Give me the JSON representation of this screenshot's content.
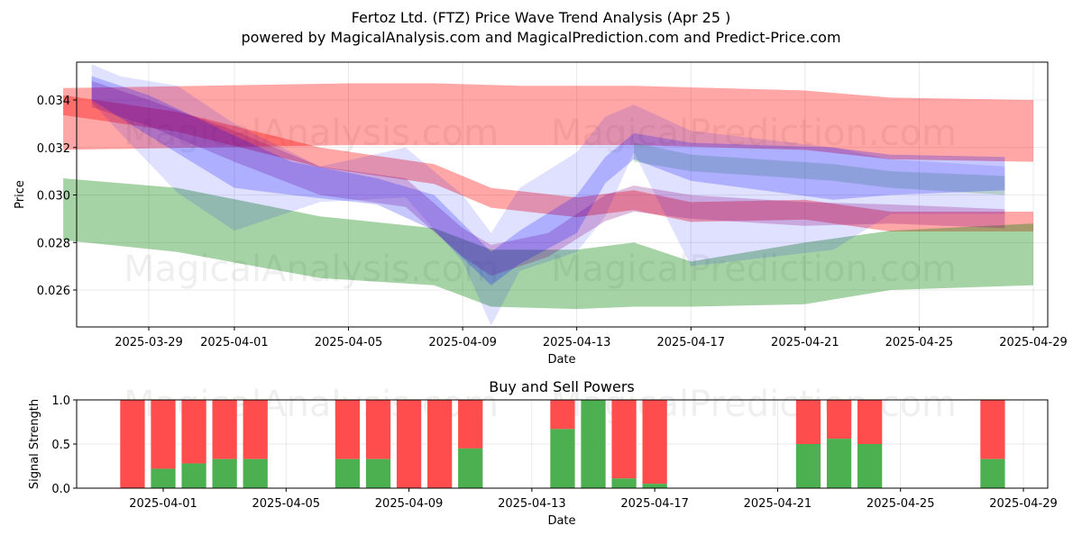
{
  "title": "Fertoz Ltd. (FTZ) Price Wave Trend Analysis (Apr 25 )",
  "subtitle": "powered by MagicalAnalysis.com and MagicalPrediction.com and Predict-Price.com",
  "watermarks": [
    "MagicalAnalysis.com",
    "MagicalPrediction.com"
  ],
  "colors": {
    "red": "#ff0000",
    "green": "#008000",
    "blue": "#0000ff",
    "purple": "#800080",
    "buy": "#4caf50",
    "sell": "#ff4c4c"
  },
  "chart_data": [
    {
      "type": "area",
      "title": "",
      "xlabel": "Date",
      "ylabel": "Price",
      "xlim": [
        "2025-03-25",
        "2025-04-29"
      ],
      "ylim": [
        0.0244,
        0.0357
      ],
      "grid": true,
      "x_ticks": [
        "2025-03-29",
        "2025-04-01",
        "2025-04-05",
        "2025-04-09",
        "2025-04-13",
        "2025-04-17",
        "2025-04-21",
        "2025-04-25",
        "2025-04-29"
      ],
      "y_ticks": [
        "0.026",
        "0.028",
        "0.030",
        "0.032",
        "0.034"
      ],
      "bands": [
        {
          "color": "red",
          "opacity": 0.35,
          "x": [
            "2025-03-26",
            "2025-04-05",
            "2025-04-08",
            "2025-04-11",
            "2025-04-15",
            "2025-04-21",
            "2025-04-24",
            "2025-04-29"
          ],
          "upper": [
            0.0345,
            0.0347,
            0.0347,
            0.0346,
            0.0346,
            0.0344,
            0.0341,
            0.034
          ],
          "lower": [
            0.0319,
            0.0321,
            0.0321,
            0.0321,
            0.0321,
            0.0319,
            0.0315,
            0.0314
          ]
        },
        {
          "color": "red",
          "opacity": 0.35,
          "x": [
            "2025-03-26",
            "2025-03-30",
            "2025-04-04",
            "2025-04-08",
            "2025-04-10",
            "2025-04-13",
            "2025-04-15",
            "2025-04-17",
            "2025-04-21",
            "2025-04-24",
            "2025-04-29"
          ],
          "upper": [
            0.0342,
            0.0335,
            0.032,
            0.0313,
            0.0303,
            0.0299,
            0.0302,
            0.0297,
            0.0298,
            0.0293,
            0.0293
          ]
        },
        {
          "color": "green",
          "opacity": 0.35,
          "x": [
            "2025-03-26",
            "2025-03-30",
            "2025-04-04",
            "2025-04-08",
            "2025-04-10",
            "2025-04-13",
            "2025-04-15",
            "2025-04-17",
            "2025-04-21",
            "2025-04-24",
            "2025-04-29"
          ],
          "upper": [
            0.0307,
            0.0303,
            0.0291,
            0.0286,
            0.0277,
            0.0277,
            0.028,
            0.0272,
            0.028,
            0.0285,
            0.0288
          ],
          "lower": [
            0.0281,
            0.0276,
            0.0265,
            0.0262,
            0.0253,
            0.0252,
            0.0253,
            0.0253,
            0.0254,
            0.026,
            0.0262
          ]
        },
        {
          "color": "blue",
          "opacity": 0.12,
          "x": [
            "2025-03-27",
            "2025-03-28",
            "2025-03-30",
            "2025-04-01",
            "2025-04-04",
            "2025-04-07",
            "2025-04-09",
            "2025-04-10",
            "2025-04-11",
            "2025-04-13",
            "2025-04-14",
            "2025-04-15",
            "2025-04-17",
            "2025-04-22",
            "2025-04-24",
            "2025-04-28"
          ],
          "upper": [
            0.0355,
            0.035,
            0.0346,
            0.033,
            0.0312,
            0.032,
            0.03,
            0.0284,
            0.0303,
            0.0318,
            0.0333,
            0.0338,
            0.0327,
            0.032,
            0.0315,
            0.0312
          ],
          "lower": [
            0.0339,
            0.0326,
            0.0301,
            0.0285,
            0.0297,
            0.0299,
            0.0272,
            0.0245,
            0.0268,
            0.0276,
            0.0291,
            0.0318,
            0.027,
            0.0277,
            0.0292,
            0.0292
          ]
        },
        {
          "color": "green",
          "opacity": 0.18,
          "x": [
            "2025-04-15",
            "2025-04-17",
            "2025-04-22",
            "2025-04-24",
            "2025-04-28"
          ],
          "upper": [
            0.0322,
            0.0317,
            0.0313,
            0.031,
            0.0308
          ],
          "lower": [
            0.0314,
            0.031,
            0.0306,
            0.0303,
            0.03
          ]
        },
        {
          "color": "purple",
          "opacity": 0.25,
          "x": [
            "2025-03-27",
            "2025-03-29",
            "2025-04-01",
            "2025-04-04",
            "2025-04-07",
            "2025-04-09",
            "2025-04-10",
            "2025-04-12",
            "2025-04-14",
            "2025-04-15",
            "2025-04-17",
            "2025-04-21",
            "2025-04-24",
            "2025-04-28"
          ],
          "upper": [
            0.0348,
            0.034,
            0.0327,
            0.0312,
            0.0307,
            0.0286,
            0.0279,
            0.0284,
            0.03,
            0.0304,
            0.03,
            0.0297,
            0.0296,
            0.0294
          ],
          "lower": [
            0.0337,
            0.0329,
            0.0314,
            0.03,
            0.0295,
            0.0274,
            0.0266,
            0.0274,
            0.0289,
            0.0293,
            0.029,
            0.0287,
            0.0288,
            0.0286
          ]
        },
        {
          "color": "blue",
          "opacity": 0.22,
          "x": [
            "2025-03-27",
            "2025-03-29",
            "2025-04-01",
            "2025-04-03",
            "2025-04-06",
            "2025-04-08",
            "2025-04-10",
            "2025-04-11",
            "2025-04-13",
            "2025-04-14",
            "2025-04-15",
            "2025-04-17",
            "2025-04-22",
            "2025-04-24",
            "2025-04-28"
          ],
          "upper": [
            0.035,
            0.0342,
            0.0325,
            0.0314,
            0.0307,
            0.03,
            0.0276,
            0.0285,
            0.03,
            0.0316,
            0.0326,
            0.0322,
            0.032,
            0.0317,
            0.0316
          ],
          "lower": [
            0.034,
            0.0325,
            0.0303,
            0.03,
            0.0296,
            0.0285,
            0.0262,
            0.0271,
            0.0284,
            0.0305,
            0.0315,
            0.0306,
            0.0298,
            0.03,
            0.0302
          ]
        }
      ],
      "watermark_text": "MagicalAnalysis.com"
    },
    {
      "type": "bar",
      "title": "Buy and Sell Powers",
      "xlabel": "Date",
      "ylabel": "Signal Strength",
      "xlim": [
        "2025-03-28",
        "2025-04-30"
      ],
      "ylim": [
        0,
        1
      ],
      "grid": true,
      "x_ticks": [
        "2025-04-01",
        "2025-04-05",
        "2025-04-09",
        "2025-04-13",
        "2025-04-17",
        "2025-04-21",
        "2025-04-25",
        "2025-04-29"
      ],
      "y_ticks": [
        "0.0",
        "0.5",
        "1.0"
      ],
      "series": [
        {
          "name": "Buy",
          "color": "#4caf50"
        },
        {
          "name": "Sell",
          "color": "#ff4c4c"
        }
      ],
      "bars": [
        {
          "date": "2025-03-31",
          "buy": 0.0
        },
        {
          "date": "2025-04-01",
          "buy": 0.22
        },
        {
          "date": "2025-04-02",
          "buy": 0.28
        },
        {
          "date": "2025-04-03",
          "buy": 0.33
        },
        {
          "date": "2025-04-04",
          "buy": 0.33
        },
        {
          "date": "2025-04-07",
          "buy": 0.33
        },
        {
          "date": "2025-04-08",
          "buy": 0.33
        },
        {
          "date": "2025-04-09",
          "buy": 0.0
        },
        {
          "date": "2025-04-10",
          "buy": 0.0
        },
        {
          "date": "2025-04-11",
          "buy": 0.45
        },
        {
          "date": "2025-04-14",
          "buy": 0.67
        },
        {
          "date": "2025-04-15",
          "buy": 1.0
        },
        {
          "date": "2025-04-16",
          "buy": 0.11
        },
        {
          "date": "2025-04-17",
          "buy": 0.05
        },
        {
          "date": "2025-04-22",
          "buy": 0.5
        },
        {
          "date": "2025-04-23",
          "buy": 0.56
        },
        {
          "date": "2025-04-24",
          "buy": 0.5
        },
        {
          "date": "2025-04-28",
          "buy": 0.33
        }
      ]
    }
  ]
}
